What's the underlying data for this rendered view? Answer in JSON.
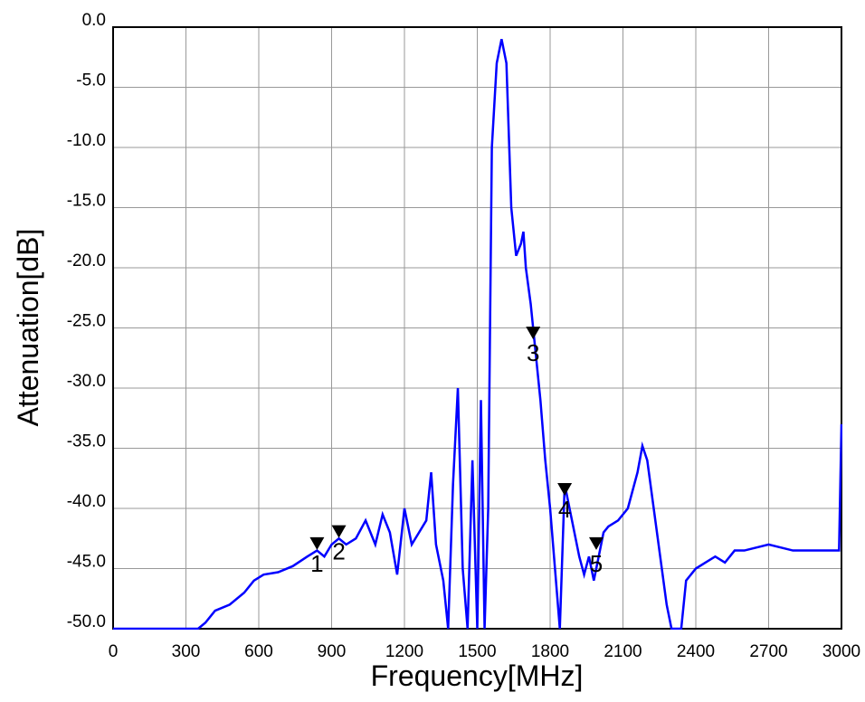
{
  "chart_data": {
    "type": "line",
    "x_label": "Frequency[MHz]",
    "y_label": "Attenuation[dB]",
    "x": [
      0,
      300,
      350,
      380,
      420,
      480,
      540,
      580,
      620,
      680,
      740,
      800,
      840,
      870,
      900,
      930,
      960,
      1000,
      1040,
      1080,
      1110,
      1140,
      1170,
      1200,
      1230,
      1260,
      1290,
      1310,
      1330,
      1360,
      1380,
      1400,
      1420,
      1440,
      1460,
      1480,
      1500,
      1515,
      1530,
      1545,
      1560,
      1580,
      1600,
      1620,
      1640,
      1660,
      1680,
      1690,
      1700,
      1720,
      1740,
      1760,
      1780,
      1800,
      1820,
      1840,
      1860,
      1880,
      1900,
      1920,
      1940,
      1960,
      1980,
      2000,
      2020,
      2040,
      2080,
      2120,
      2160,
      2180,
      2200,
      2220,
      2240,
      2260,
      2280,
      2300,
      2340,
      2360,
      2400,
      2440,
      2480,
      2520,
      2560,
      2600,
      2700,
      2800,
      2900,
      2990,
      3000
    ],
    "series": [
      {
        "color": "#0000ff",
        "values": [
          -50,
          -50,
          -50,
          -49.5,
          -48.5,
          -48,
          -47,
          -46,
          -45.5,
          -45.3,
          -44.8,
          -44,
          -43.5,
          -44,
          -43,
          -42.5,
          -43,
          -42.5,
          -41,
          -43,
          -40.5,
          -42,
          -45.5,
          -40,
          -43,
          -42,
          -41,
          -37,
          -43,
          -46,
          -50,
          -38,
          -30,
          -45,
          -50,
          -36,
          -50,
          -31,
          -50,
          -40,
          -10,
          -3,
          -1,
          -3,
          -15,
          -19,
          -18,
          -17,
          -20,
          -23,
          -27,
          -31,
          -36,
          -40,
          -45,
          -50,
          -38,
          -40,
          -42,
          -44,
          -45.5,
          -44,
          -46,
          -44,
          -42,
          -41.5,
          -41,
          -40,
          -37,
          -34.8,
          -36,
          -39,
          -42,
          -45,
          -48,
          -50,
          -50,
          -46,
          -45,
          -44.5,
          -44,
          -44.5,
          -43.5,
          -43.5,
          -43,
          -43.5,
          -43.5,
          -43.5,
          -33
        ]
      }
    ],
    "markers": [
      {
        "label": "1",
        "x": 840,
        "y": -43
      },
      {
        "label": "2",
        "x": 930,
        "y": -42
      },
      {
        "label": "3",
        "x": 1730,
        "y": -25.5
      },
      {
        "label": "4",
        "x": 1860,
        "y": -38.5
      },
      {
        "label": "5",
        "x": 1990,
        "y": -43
      }
    ],
    "xlim": [
      0,
      3000
    ],
    "ylim": [
      -50,
      0
    ],
    "xticks": [
      0,
      300,
      600,
      900,
      1200,
      1500,
      1800,
      2100,
      2400,
      2700,
      3000
    ],
    "yticks": [
      {
        "value": 0,
        "label": "0.0"
      },
      {
        "value": -5,
        "label": "-5.0"
      },
      {
        "value": -10,
        "label": "-10.0"
      },
      {
        "value": -15,
        "label": "-15.0"
      },
      {
        "value": -20,
        "label": "-20.0"
      },
      {
        "value": -25,
        "label": "-25.0"
      },
      {
        "value": -30,
        "label": "-30.0"
      },
      {
        "value": -35,
        "label": "-35.0"
      },
      {
        "value": -40,
        "label": "-40.0"
      },
      {
        "value": -45,
        "label": "-45.0"
      },
      {
        "value": -50,
        "label": "-50.0"
      }
    ],
    "grid": true
  }
}
